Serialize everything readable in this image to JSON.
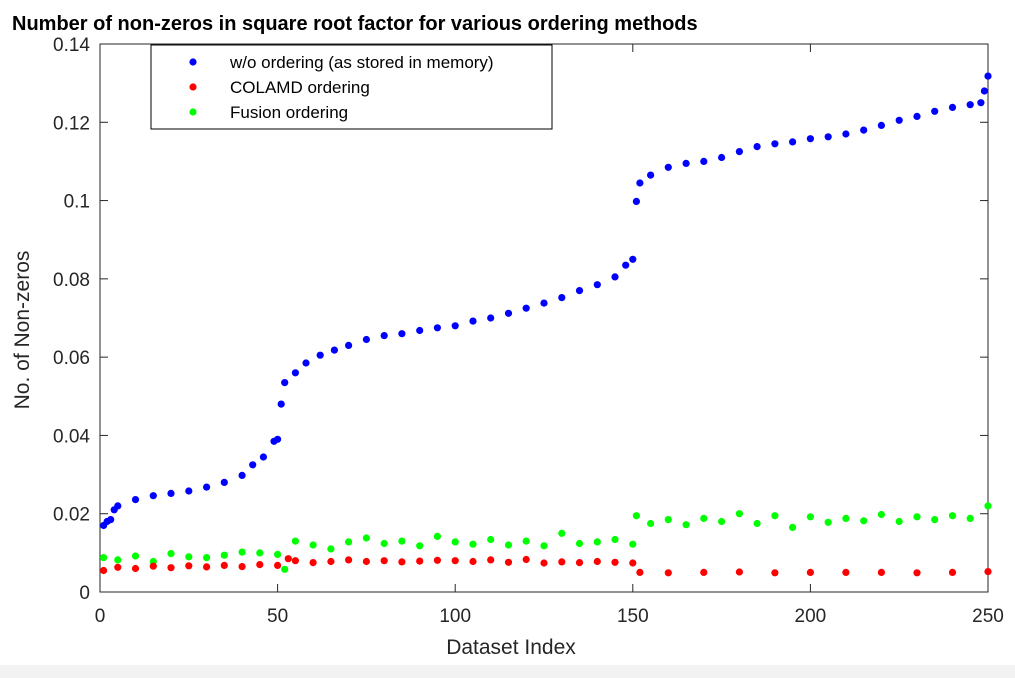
{
  "chart_data": {
    "type": "scatter",
    "title": "Number of non-zeros in square root factor for various ordering methods",
    "xlabel": "Dataset Index",
    "ylabel": "No. of Non-zeros",
    "xlim": [
      0,
      250
    ],
    "ylim": [
      0,
      0.14
    ],
    "x_ticks": [
      "0",
      "50",
      "100",
      "150",
      "200",
      "250"
    ],
    "y_ticks": [
      "0",
      "0.02",
      "0.04",
      "0.06",
      "0.08",
      "0.1",
      "0.12",
      "0.14"
    ],
    "legend_position": "top-left",
    "series": [
      {
        "name": "w/o ordering (as stored in memory)",
        "color": "#0000ff",
        "points": [
          [
            1,
            0.017
          ],
          [
            2,
            0.018
          ],
          [
            3,
            0.0185
          ],
          [
            4,
            0.021
          ],
          [
            5,
            0.022
          ],
          [
            10,
            0.0236
          ],
          [
            15,
            0.0246
          ],
          [
            20,
            0.0252
          ],
          [
            25,
            0.0258
          ],
          [
            30,
            0.0268
          ],
          [
            35,
            0.028
          ],
          [
            40,
            0.0298
          ],
          [
            43,
            0.0325
          ],
          [
            46,
            0.0345
          ],
          [
            49,
            0.0385
          ],
          [
            50,
            0.039
          ],
          [
            51,
            0.048
          ],
          [
            52,
            0.0535
          ],
          [
            55,
            0.056
          ],
          [
            58,
            0.0585
          ],
          [
            62,
            0.0605
          ],
          [
            66,
            0.0618
          ],
          [
            70,
            0.063
          ],
          [
            75,
            0.0645
          ],
          [
            80,
            0.0655
          ],
          [
            85,
            0.066
          ],
          [
            90,
            0.0668
          ],
          [
            95,
            0.0675
          ],
          [
            100,
            0.068
          ],
          [
            105,
            0.0692
          ],
          [
            110,
            0.07
          ],
          [
            115,
            0.0712
          ],
          [
            120,
            0.0725
          ],
          [
            125,
            0.0738
          ],
          [
            130,
            0.0752
          ],
          [
            135,
            0.077
          ],
          [
            140,
            0.0785
          ],
          [
            145,
            0.0805
          ],
          [
            148,
            0.0835
          ],
          [
            150,
            0.085
          ],
          [
            151,
            0.0998
          ],
          [
            152,
            0.1045
          ],
          [
            155,
            0.1065
          ],
          [
            160,
            0.1085
          ],
          [
            165,
            0.1095
          ],
          [
            170,
            0.11
          ],
          [
            175,
            0.111
          ],
          [
            180,
            0.1125
          ],
          [
            185,
            0.1138
          ],
          [
            190,
            0.1145
          ],
          [
            195,
            0.115
          ],
          [
            200,
            0.1158
          ],
          [
            205,
            0.1163
          ],
          [
            210,
            0.117
          ],
          [
            215,
            0.118
          ],
          [
            220,
            0.1192
          ],
          [
            225,
            0.1205
          ],
          [
            230,
            0.1215
          ],
          [
            235,
            0.1228
          ],
          [
            240,
            0.1238
          ],
          [
            245,
            0.1245
          ],
          [
            248,
            0.125
          ],
          [
            249,
            0.128
          ],
          [
            250,
            0.1318
          ]
        ]
      },
      {
        "name": "COLAMD ordering",
        "color": "#ff0000",
        "points": [
          [
            1,
            0.0055
          ],
          [
            5,
            0.0063
          ],
          [
            10,
            0.006
          ],
          [
            15,
            0.0066
          ],
          [
            20,
            0.0062
          ],
          [
            25,
            0.0067
          ],
          [
            30,
            0.0064
          ],
          [
            35,
            0.0068
          ],
          [
            40,
            0.0065
          ],
          [
            45,
            0.007
          ],
          [
            50,
            0.0068
          ],
          [
            53,
            0.0085
          ],
          [
            55,
            0.008
          ],
          [
            60,
            0.0075
          ],
          [
            65,
            0.0078
          ],
          [
            70,
            0.0082
          ],
          [
            75,
            0.0078
          ],
          [
            80,
            0.008
          ],
          [
            85,
            0.0077
          ],
          [
            90,
            0.0079
          ],
          [
            95,
            0.0081
          ],
          [
            100,
            0.008
          ],
          [
            105,
            0.0078
          ],
          [
            110,
            0.0082
          ],
          [
            115,
            0.0076
          ],
          [
            120,
            0.0083
          ],
          [
            125,
            0.0074
          ],
          [
            130,
            0.0077
          ],
          [
            135,
            0.0075
          ],
          [
            140,
            0.0078
          ],
          [
            145,
            0.0076
          ],
          [
            150,
            0.0074
          ],
          [
            152,
            0.005
          ],
          [
            160,
            0.0049
          ],
          [
            170,
            0.005
          ],
          [
            180,
            0.0051
          ],
          [
            190,
            0.0049
          ],
          [
            200,
            0.005
          ],
          [
            210,
            0.005
          ],
          [
            220,
            0.005
          ],
          [
            230,
            0.0049
          ],
          [
            240,
            0.005
          ],
          [
            250,
            0.0052
          ]
        ]
      },
      {
        "name": "Fusion ordering",
        "color": "#00ff00",
        "points": [
          [
            1,
            0.0088
          ],
          [
            5,
            0.0082
          ],
          [
            10,
            0.0092
          ],
          [
            15,
            0.0078
          ],
          [
            20,
            0.0098
          ],
          [
            25,
            0.009
          ],
          [
            30,
            0.0088
          ],
          [
            35,
            0.0094
          ],
          [
            40,
            0.0102
          ],
          [
            45,
            0.01
          ],
          [
            50,
            0.0096
          ],
          [
            52,
            0.0058
          ],
          [
            55,
            0.013
          ],
          [
            60,
            0.012
          ],
          [
            65,
            0.011
          ],
          [
            70,
            0.0128
          ],
          [
            75,
            0.0138
          ],
          [
            80,
            0.0124
          ],
          [
            85,
            0.013
          ],
          [
            90,
            0.0118
          ],
          [
            95,
            0.0142
          ],
          [
            100,
            0.0128
          ],
          [
            105,
            0.0122
          ],
          [
            110,
            0.0134
          ],
          [
            115,
            0.012
          ],
          [
            120,
            0.013
          ],
          [
            125,
            0.0118
          ],
          [
            130,
            0.015
          ],
          [
            135,
            0.0124
          ],
          [
            140,
            0.0128
          ],
          [
            145,
            0.0134
          ],
          [
            150,
            0.0122
          ],
          [
            151,
            0.0195
          ],
          [
            155,
            0.0175
          ],
          [
            160,
            0.0185
          ],
          [
            165,
            0.0172
          ],
          [
            170,
            0.0188
          ],
          [
            175,
            0.018
          ],
          [
            180,
            0.02
          ],
          [
            185,
            0.0175
          ],
          [
            190,
            0.0195
          ],
          [
            195,
            0.0165
          ],
          [
            200,
            0.0192
          ],
          [
            205,
            0.0178
          ],
          [
            210,
            0.0188
          ],
          [
            215,
            0.0182
          ],
          [
            220,
            0.0198
          ],
          [
            225,
            0.018
          ],
          [
            230,
            0.0192
          ],
          [
            235,
            0.0185
          ],
          [
            240,
            0.0195
          ],
          [
            245,
            0.0188
          ],
          [
            250,
            0.022
          ]
        ]
      }
    ]
  }
}
